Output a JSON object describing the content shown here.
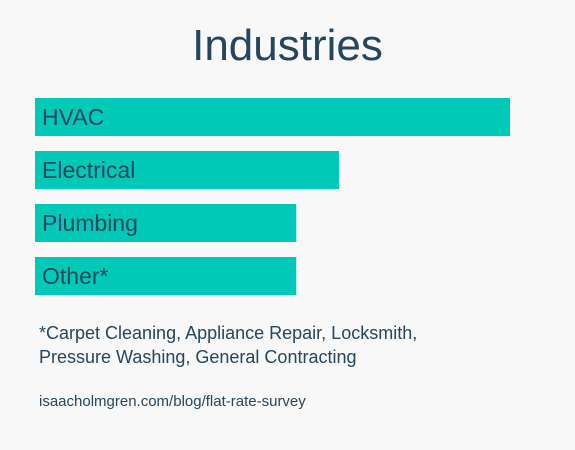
{
  "chart_data": {
    "type": "bar",
    "orientation": "horizontal",
    "title": "Industries",
    "categories": [
      "HVAC",
      "Electrical",
      "Plumbing",
      "Other*"
    ],
    "values": [
      100,
      64,
      55,
      55
    ],
    "value_scale": "relative (bar length as percent of HVAC, no axis shown)",
    "xlabel": "",
    "ylabel": "",
    "grid": false,
    "legend": "none",
    "bar_color": "#00c9b7",
    "label_color": "#24465e"
  },
  "footnote": {
    "line1": "*Carpet Cleaning, Appliance Repair, Locksmith,",
    "line2": "Pressure Washing, General Contracting"
  },
  "source": "isaacholmgren.com/blog/flat-rate-survey"
}
